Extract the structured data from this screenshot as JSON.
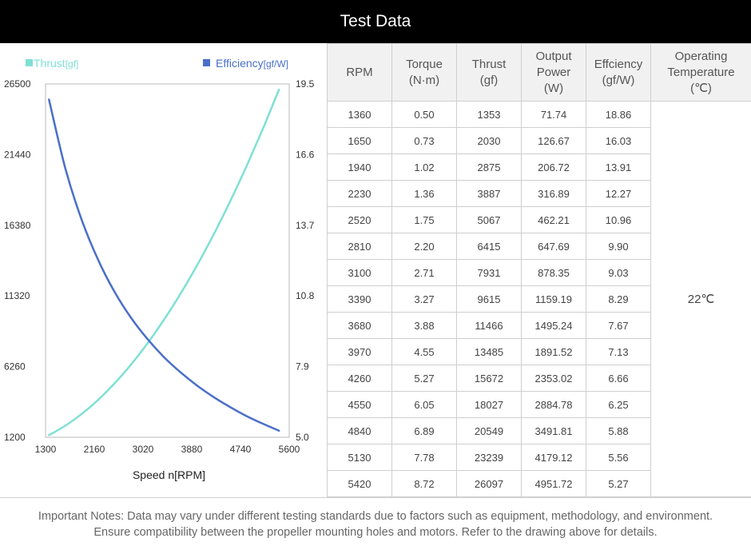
{
  "title": "Test Data",
  "chart_data": {
    "type": "line",
    "xlabel": "Speed n[RPM]",
    "x_ticks": [
      1300,
      2160,
      3020,
      3880,
      4740,
      5600
    ],
    "xlim": [
      1300,
      5600
    ],
    "y_left": {
      "ticks": [
        1200,
        6260,
        11320,
        16380,
        21440,
        26500
      ],
      "lim": [
        1200,
        26500
      ]
    },
    "y_right": {
      "ticks": [
        5.0,
        7.9,
        10.8,
        13.7,
        16.6,
        19.5
      ],
      "lim": [
        5.0,
        19.5
      ]
    },
    "x": [
      1360,
      1650,
      1940,
      2230,
      2520,
      2810,
      3100,
      3390,
      3680,
      3970,
      4260,
      4550,
      4840,
      5130,
      5420
    ],
    "series": [
      {
        "name": "Thrust",
        "unit": "[gf]",
        "axis": "left",
        "color": "#7fe0d4",
        "values": [
          1353,
          2030,
          2875,
          3887,
          5067,
          6415,
          7931,
          9615,
          11466,
          13485,
          15672,
          18027,
          20549,
          23239,
          26097
        ]
      },
      {
        "name": "Efficiency",
        "unit": "[gf/W]",
        "axis": "right",
        "color": "#4a6fc8",
        "values": [
          18.86,
          16.03,
          13.91,
          12.27,
          10.96,
          9.9,
          9.03,
          8.29,
          7.67,
          7.13,
          6.66,
          6.25,
          5.88,
          5.56,
          5.27
        ]
      }
    ]
  },
  "table": {
    "headers": [
      [
        "RPM"
      ],
      [
        "Torque",
        "(N·m)"
      ],
      [
        "Thrust",
        "(gf)"
      ],
      [
        "Output",
        "Power",
        "(W)"
      ],
      [
        "Effciency",
        "(gf/W)"
      ],
      [
        "Operating",
        "Temperature",
        "(℃)"
      ]
    ],
    "rows": [
      [
        "1360",
        "0.50",
        "1353",
        "71.74",
        "18.86"
      ],
      [
        "1650",
        "0.73",
        "2030",
        "126.67",
        "16.03"
      ],
      [
        "1940",
        "1.02",
        "2875",
        "206.72",
        "13.91"
      ],
      [
        "2230",
        "1.36",
        "3887",
        "316.89",
        "12.27"
      ],
      [
        "2520",
        "1.75",
        "5067",
        "462.21",
        "10.96"
      ],
      [
        "2810",
        "2.20",
        "6415",
        "647.69",
        "9.90"
      ],
      [
        "3100",
        "2.71",
        "7931",
        "878.35",
        "9.03"
      ],
      [
        "3390",
        "3.27",
        "9615",
        "1159.19",
        "8.29"
      ],
      [
        "3680",
        "3.88",
        "11466",
        "1495.24",
        "7.67"
      ],
      [
        "3970",
        "4.55",
        "13485",
        "1891.52",
        "7.13"
      ],
      [
        "4260",
        "5.27",
        "15672",
        "2353.02",
        "6.66"
      ],
      [
        "4550",
        "6.05",
        "18027",
        "2884.78",
        "6.25"
      ],
      [
        "4840",
        "6.89",
        "20549",
        "3491.81",
        "5.88"
      ],
      [
        "5130",
        "7.78",
        "23239",
        "4179.12",
        "5.56"
      ],
      [
        "5420",
        "8.72",
        "26097",
        "4951.72",
        "5.27"
      ]
    ],
    "temperature": "22℃"
  },
  "notes": [
    "Important Notes: Data may vary under different testing standards due to factors such as equipment, methodology, and environment.",
    "Ensure compatibility between the propeller mounting holes and motors. Refer to the drawing above for details."
  ]
}
